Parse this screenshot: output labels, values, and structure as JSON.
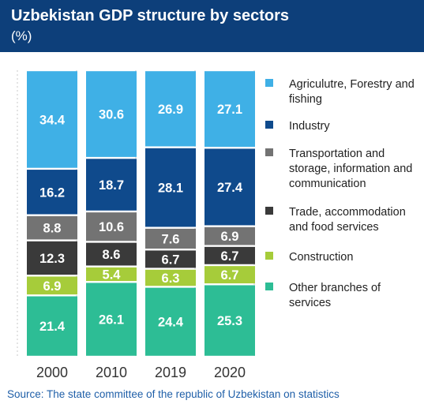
{
  "title": "Uzbekistan GDP structure by sectors",
  "subtitle": "(%)",
  "source": "Source: The state committee of the republic of Uzbekistan on statistics",
  "colors": {
    "header_bg": "#0d3f7a",
    "agriculture": "#3fb0e6",
    "industry": "#0f4a8c",
    "transportation": "#737373",
    "trade": "#3a3a3a",
    "construction": "#a6cc3a",
    "other": "#2dbd95"
  },
  "chart_data": {
    "type": "bar",
    "stacked": true,
    "categories": [
      "2000",
      "2010",
      "2019",
      "2020"
    ],
    "series": [
      {
        "name": "Other branches of services",
        "color": "#2dbd95",
        "values": [
          21.4,
          26.1,
          24.4,
          25.3
        ]
      },
      {
        "name": "Construction",
        "color": "#a6cc3a",
        "values": [
          6.9,
          5.4,
          6.3,
          6.7
        ]
      },
      {
        "name": "Trade, accommodation and food services",
        "color": "#3a3a3a",
        "values": [
          12.3,
          8.6,
          6.7,
          6.7
        ]
      },
      {
        "name": "Transportation and storage, information and communication",
        "color": "#737373",
        "values": [
          8.8,
          10.6,
          7.6,
          6.9
        ]
      },
      {
        "name": "Industry",
        "color": "#0f4a8c",
        "values": [
          16.2,
          18.7,
          28.1,
          27.4
        ]
      },
      {
        "name": "Agriculutre, Forestry and fishing",
        "color": "#3fb0e6",
        "values": [
          34.4,
          30.6,
          26.9,
          27.1
        ]
      }
    ],
    "ylim": [
      0,
      100
    ],
    "legend_position": "right",
    "grid": true
  },
  "legend": [
    {
      "label": "Agriculutre, Forestry and fishing",
      "color": "#3fb0e6"
    },
    {
      "label": "Industry",
      "color": "#0f4a8c"
    },
    {
      "label": "Transportation and storage, information and communication",
      "color": "#737373"
    },
    {
      "label": "Trade, accommodation and food services",
      "color": "#3a3a3a"
    },
    {
      "label": "Construction",
      "color": "#a6cc3a"
    },
    {
      "label": "Other branches of services",
      "color": "#2dbd95"
    }
  ]
}
